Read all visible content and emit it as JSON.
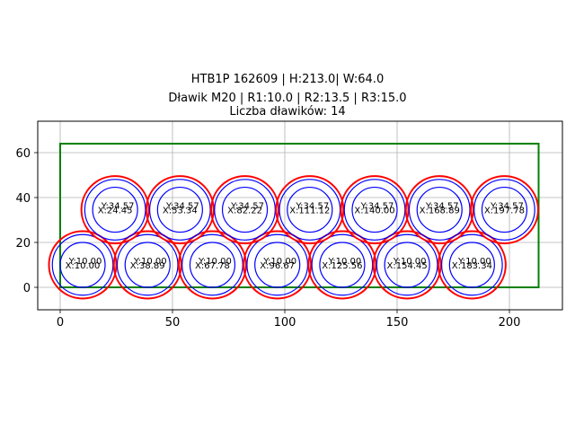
{
  "chart_data": {
    "type": "scatter",
    "title_lines": [
      "HTB1P 162609 | H:213.0| W:64.0",
      "Dławik M20 | R1:10.0 | R2:13.5 | R3:15.0",
      "Liczba dławików: 14"
    ],
    "xlabel": "",
    "ylabel": "",
    "xlim": [
      -10,
      223.6
    ],
    "ylim": [
      -10,
      74
    ],
    "xticks": [
      0,
      50,
      100,
      150,
      200
    ],
    "yticks": [
      0,
      20,
      40,
      60
    ],
    "grid": true,
    "rectangle": {
      "x": 0,
      "y": 0,
      "width": 213.0,
      "height": 64.0,
      "color": "#008000"
    },
    "radii": {
      "R1": 10.0,
      "R2": 13.5,
      "R3": 15.0
    },
    "circle_colors": {
      "R1": "#0000ff",
      "R2": "#0000ff",
      "R3": "#ff0000"
    },
    "count": 14,
    "points": [
      {
        "x": 10.0,
        "y": 10.0,
        "label_x": "X:10.00",
        "label_y": "Y:10.00"
      },
      {
        "x": 38.89,
        "y": 10.0,
        "label_x": "X:38.89",
        "label_y": "Y:10.00"
      },
      {
        "x": 67.78,
        "y": 10.0,
        "label_x": "X:67.78",
        "label_y": "Y:10.00"
      },
      {
        "x": 96.67,
        "y": 10.0,
        "label_x": "X:96.67",
        "label_y": "Y:10.00"
      },
      {
        "x": 125.56,
        "y": 10.0,
        "label_x": "X:125.56",
        "label_y": "Y:10.00"
      },
      {
        "x": 154.45,
        "y": 10.0,
        "label_x": "X:154.45",
        "label_y": "Y:10.00"
      },
      {
        "x": 183.34,
        "y": 10.0,
        "label_x": "X:183.34",
        "label_y": "Y:10.00"
      },
      {
        "x": 24.45,
        "y": 34.57,
        "label_x": "X:24.45",
        "label_y": "Y:34.57"
      },
      {
        "x": 53.34,
        "y": 34.57,
        "label_x": "X:53.34",
        "label_y": "Y:34.57"
      },
      {
        "x": 82.22,
        "y": 34.57,
        "label_x": "X:82.22",
        "label_y": "Y:34.57"
      },
      {
        "x": 111.12,
        "y": 34.57,
        "label_x": "X:111.12",
        "label_y": "Y:34.57"
      },
      {
        "x": 140.0,
        "y": 34.57,
        "label_x": "X:140.00",
        "label_y": "Y:34.57"
      },
      {
        "x": 168.89,
        "y": 34.57,
        "label_x": "X:168.89",
        "label_y": "Y:34.57"
      },
      {
        "x": 197.78,
        "y": 34.57,
        "label_x": "X:197.78",
        "label_y": "Y:34.57"
      }
    ]
  },
  "header": {
    "line1": "HTB1P 162609 | H:213.0| W:64.0",
    "line2": "Dławik M20 | R1:10.0 | R2:13.5 | R3:15.0",
    "line3": "Liczba dławików: 14"
  }
}
